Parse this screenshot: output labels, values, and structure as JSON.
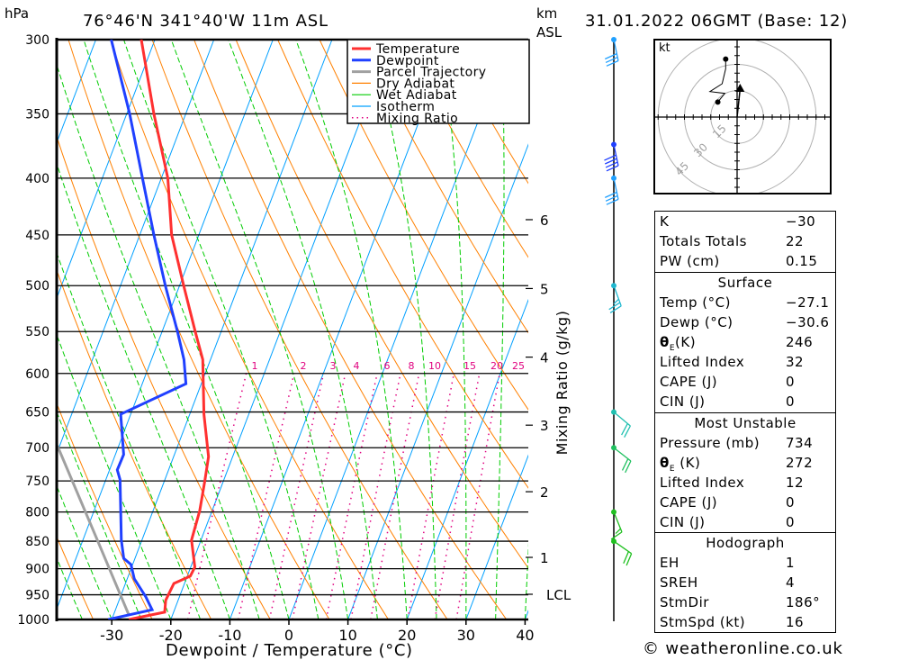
{
  "header": {
    "pressure_unit": "hPa",
    "location": "76°46'N  341°40'W  11m  ASL",
    "km_label": "km",
    "asl_label": "ASL",
    "datetime": "31.01.2022  06GMT  (Base: 12)"
  },
  "chart_data": {
    "type": "skew-t",
    "title": "76°46'N  341°40'W  11m  ASL",
    "xlabel": "Dewpoint / Temperature (°C)",
    "ylabel": "hPa",
    "xlim": [
      -40,
      40
    ],
    "ylim": [
      1000,
      300
    ],
    "x_ticks": [
      "-30",
      "-20",
      "-10",
      "0",
      "10",
      "20",
      "30",
      "40"
    ],
    "pressure_ticks": [
      "300",
      "350",
      "400",
      "450",
      "500",
      "550",
      "600",
      "650",
      "700",
      "750",
      "800",
      "850",
      "900",
      "950",
      "1000"
    ],
    "height_ticks": [
      {
        "label": "6",
        "pressure": 436
      },
      {
        "label": "5",
        "pressure": 503
      },
      {
        "label": "4",
        "pressure": 580
      },
      {
        "label": "3",
        "pressure": 668
      },
      {
        "label": "2",
        "pressure": 767
      },
      {
        "label": "1",
        "pressure": 879
      },
      {
        "label": "LCL",
        "pressure": 949
      }
    ],
    "mixing_ratio_axis_label": "Mixing Ratio (g/kg)",
    "mixing_ratios": [
      "1",
      "2",
      "3",
      "4",
      "6",
      "8",
      "10",
      "15",
      "20",
      "25"
    ],
    "legend": [
      {
        "label": "Temperature",
        "color": "#ff3030",
        "style": "solid"
      },
      {
        "label": "Dewpoint",
        "color": "#2040ff",
        "style": "solid"
      },
      {
        "label": "Parcel Trajectory",
        "color": "#a0a0a0",
        "style": "solid"
      },
      {
        "label": "Dry Adiabat",
        "color": "#ff8000",
        "style": "thin"
      },
      {
        "label": "Wet Adiabat",
        "color": "#00cc00",
        "style": "thin"
      },
      {
        "label": "Isotherm",
        "color": "#00a0ff",
        "style": "thin"
      },
      {
        "label": "Mixing Ratio",
        "color": "#e0007f",
        "style": "dotted"
      }
    ],
    "temperature": [
      [
        1000,
        -27.1
      ],
      [
        985,
        -21.5
      ],
      [
        961,
        -22.1
      ],
      [
        928,
        -21.8
      ],
      [
        914,
        -19.5
      ],
      [
        897,
        -19.3
      ],
      [
        848,
        -21.6
      ],
      [
        798,
        -22.1
      ],
      [
        748,
        -23.2
      ],
      [
        713,
        -24.1
      ],
      [
        653,
        -27.6
      ],
      [
        583,
        -31.3
      ],
      [
        550,
        -34.4
      ],
      [
        500,
        -39.3
      ],
      [
        450,
        -44.6
      ],
      [
        400,
        -48.9
      ],
      [
        350,
        -55.4
      ],
      [
        300,
        -62.3
      ]
    ],
    "dewpoint": [
      [
        1000,
        -30.6
      ],
      [
        980,
        -23.8
      ],
      [
        954,
        -25.7
      ],
      [
        919,
        -28.8
      ],
      [
        892,
        -30.3
      ],
      [
        881,
        -31.9
      ],
      [
        848,
        -33.5
      ],
      [
        748,
        -37.6
      ],
      [
        733,
        -38.7
      ],
      [
        710,
        -38.6
      ],
      [
        653,
        -41.7
      ],
      [
        613,
        -32.6
      ],
      [
        583,
        -34.5
      ],
      [
        550,
        -37.4
      ],
      [
        500,
        -42.4
      ],
      [
        450,
        -47.6
      ],
      [
        400,
        -53.2
      ],
      [
        350,
        -59.5
      ],
      [
        300,
        -67.4
      ]
    ],
    "parcel": [
      [
        989,
        -27.5
      ],
      [
        850,
        -37.4
      ],
      [
        697,
        -50.4
      ]
    ],
    "winds": [
      {
        "p": 300,
        "dir": 168,
        "kt": 30,
        "color": "#20a0ff"
      },
      {
        "p": 373,
        "dir": 168,
        "kt": 40,
        "color": "#2040ff"
      },
      {
        "p": 400,
        "dir": 168,
        "kt": 30,
        "color": "#20a0ff"
      },
      {
        "p": 500,
        "dir": 160,
        "kt": 25,
        "color": "#20b8d0"
      },
      {
        "p": 650,
        "dir": 130,
        "kt": 20,
        "color": "#20c0b0"
      },
      {
        "p": 700,
        "dir": 128,
        "kt": 20,
        "color": "#20c060"
      },
      {
        "p": 800,
        "dir": 158,
        "kt": 15,
        "color": "#20c020"
      },
      {
        "p": 850,
        "dir": 125,
        "kt": 20,
        "color": "#20c020"
      }
    ],
    "hodograph": {
      "unit": "kt",
      "rings": [
        15,
        30,
        45
      ],
      "ring_labels": [
        "15",
        "30",
        "45"
      ],
      "trace": [
        [
          -11,
          8.5
        ],
        [
          -7,
          13.5
        ],
        [
          -15.5,
          14.5
        ],
        [
          -8.5,
          19
        ],
        [
          -6.5,
          27.5
        ],
        [
          -6.5,
          33
        ]
      ],
      "storm_motion": [
        1.7,
        15.9
      ]
    }
  },
  "indices": {
    "general": [
      {
        "label": "K",
        "value": "−30"
      },
      {
        "label": "Totals Totals",
        "value": "22"
      },
      {
        "label": "PW (cm)",
        "value": "0.15"
      }
    ],
    "surface": {
      "title": "Surface",
      "temp": {
        "label": "Temp (°C)",
        "value": "−27.1"
      },
      "dewp": {
        "label": "Dewp (°C)",
        "value": "−30.6"
      },
      "theta_e": {
        "symbol": "θ",
        "sub": "E",
        "rest": "(K)",
        "value": "246"
      },
      "lifted": {
        "label": "Lifted Index",
        "value": "32"
      },
      "cape": {
        "label": "CAPE (J)",
        "value": "0"
      },
      "cin": {
        "label": "CIN (J)",
        "value": "0"
      }
    },
    "most_unstable": {
      "title": "Most Unstable",
      "pressure": {
        "label": "Pressure (mb)",
        "value": "734"
      },
      "theta_e": {
        "symbol": "θ",
        "sub": "E",
        "rest": " (K)",
        "value": "272"
      },
      "lifted": {
        "label": "Lifted Index",
        "value": "12"
      },
      "cape": {
        "label": "CAPE (J)",
        "value": "0"
      },
      "cin": {
        "label": "CIN (J)",
        "value": "0"
      }
    },
    "hodograph": {
      "title": "Hodograph",
      "rows": [
        {
          "label": "EH",
          "value": "1"
        },
        {
          "label": "SREH",
          "value": "4"
        },
        {
          "label": "StmDir",
          "value": "186°"
        },
        {
          "label": "StmSpd (kt)",
          "value": "16"
        }
      ]
    }
  },
  "footer": "© weatheronline.co.uk"
}
